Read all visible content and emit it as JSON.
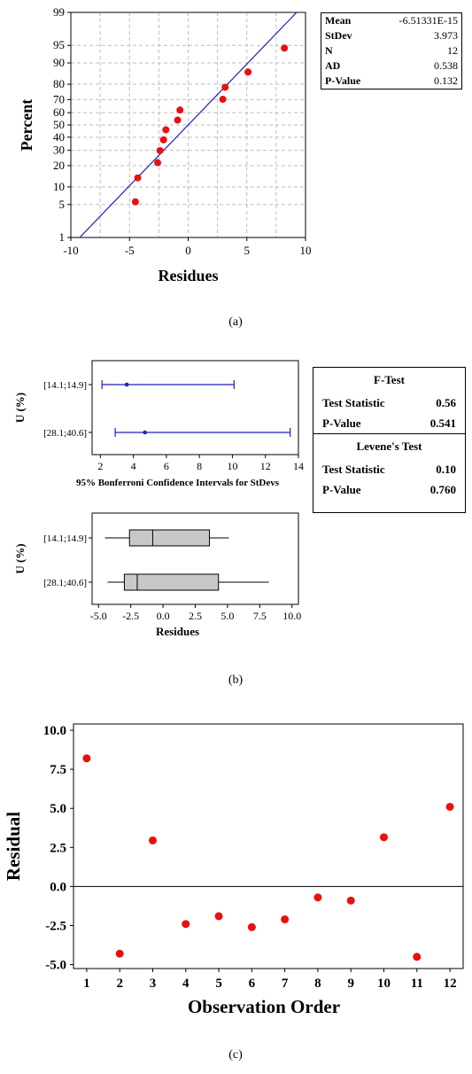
{
  "colors": {
    "point": "#e81010",
    "fitline": "#1f1fbf",
    "grid": "#bdbdbd",
    "box": "#c8c8c8"
  },
  "panel_a": {
    "caption": "(a)",
    "stats": [
      {
        "label": "Mean",
        "value": "-6.51331E-15"
      },
      {
        "label": "StDev",
        "value": "3.973"
      },
      {
        "label": "N",
        "value": "12"
      },
      {
        "label": "AD",
        "value": "0.538"
      },
      {
        "label": "P-Value",
        "value": "0.132"
      }
    ]
  },
  "panel_b": {
    "caption": "(b)",
    "tests": {
      "f_title": "F-Test",
      "f_rows": [
        {
          "label": "Test Statistic",
          "value": "0.56"
        },
        {
          "label": "P-Value",
          "value": "0.541"
        }
      ],
      "levene_title": "Levene's Test",
      "levene_rows": [
        {
          "label": "Test Statistic",
          "value": "0.10"
        },
        {
          "label": "P-Value",
          "value": "0.760"
        }
      ]
    }
  },
  "panel_c": {
    "caption": "(c)"
  },
  "chart_data": [
    {
      "type": "scatter",
      "title": "",
      "xlabel": "Residues",
      "ylabel": "Percent",
      "xlim": [
        -10,
        10
      ],
      "y_scale": "normal probability",
      "ylim": [
        1,
        99
      ],
      "grid": true,
      "x_ticks": [
        "-10",
        "-5",
        "0",
        "5",
        "10"
      ],
      "y_ticks": [
        {
          "v": 1,
          "label": "1"
        },
        {
          "v": 5,
          "label": "5"
        },
        {
          "v": 10,
          "label": "10"
        },
        {
          "v": 20,
          "label": "20"
        },
        {
          "v": 30,
          "label": "30"
        },
        {
          "v": 40,
          "label": "40"
        },
        {
          "v": 50,
          "label": "50"
        },
        {
          "v": 60,
          "label": "60"
        },
        {
          "v": 70,
          "label": "70"
        },
        {
          "v": 80,
          "label": "80"
        },
        {
          "v": 90,
          "label": "90"
        },
        {
          "v": 95,
          "label": "95"
        },
        {
          "v": 99,
          "label": "99"
        }
      ],
      "points": [
        {
          "x": -4.5,
          "y": 5.6
        },
        {
          "x": -4.3,
          "y": 13.7
        },
        {
          "x": -2.6,
          "y": 21.8
        },
        {
          "x": -2.4,
          "y": 29.8
        },
        {
          "x": -2.1,
          "y": 37.9
        },
        {
          "x": -1.9,
          "y": 46.0
        },
        {
          "x": -0.9,
          "y": 54.0
        },
        {
          "x": -0.7,
          "y": 62.1
        },
        {
          "x": 2.95,
          "y": 70.2
        },
        {
          "x": 3.15,
          "y": 78.2
        },
        {
          "x": 5.1,
          "y": 86.3
        },
        {
          "x": 8.2,
          "y": 94.4
        }
      ],
      "fit_line": {
        "mean": 0.0,
        "stdev": 3.973
      }
    },
    {
      "type": "interval",
      "title": "",
      "xlabel": "95% Bonferroni Confidence Intervals for StDevs",
      "ylabel": "U (%)",
      "xlim": [
        1.5,
        14
      ],
      "x_ticks": [
        "2",
        "4",
        "6",
        "8",
        "10",
        "12",
        "14"
      ],
      "grid": false,
      "categories": [
        "[14.1;14.9]",
        "[28.1;40.6]"
      ],
      "intervals": [
        {
          "low": 2.1,
          "est": 3.6,
          "high": 10.1
        },
        {
          "low": 2.9,
          "est": 4.7,
          "high": 13.5
        }
      ]
    },
    {
      "type": "box",
      "title": "",
      "xlabel": "Residues",
      "ylabel": "U (%)",
      "xlim": [
        -5.5,
        10.5
      ],
      "x_ticks": [
        "-5.0",
        "-2.5",
        "0.0",
        "2.5",
        "5.0",
        "7.5",
        "10.0"
      ],
      "grid": false,
      "categories": [
        "[14.1;14.9]",
        "[28.1;40.6]"
      ],
      "boxes": [
        {
          "min": -4.5,
          "q1": -2.6,
          "median": -0.8,
          "q3": 3.6,
          "max": 5.1
        },
        {
          "min": -4.3,
          "q1": -3.0,
          "median": -2.0,
          "q3": 4.3,
          "max": 8.2
        }
      ]
    },
    {
      "type": "scatter",
      "title": "",
      "xlabel": "Observation Order",
      "ylabel": "Residual",
      "xlim": [
        0.6,
        12.4
      ],
      "ylim": [
        -5.25,
        10.4
      ],
      "x_ticks": [
        "1",
        "2",
        "3",
        "4",
        "5",
        "6",
        "7",
        "8",
        "9",
        "10",
        "11",
        "12"
      ],
      "y_ticks": [
        "10.0",
        "7.5",
        "5.0",
        "2.5",
        "0.0",
        "-2.5",
        "-5.0"
      ],
      "grid": false,
      "reference_line": 0,
      "x": [
        1,
        2,
        3,
        4,
        5,
        6,
        7,
        8,
        9,
        10,
        11,
        12
      ],
      "y": [
        8.2,
        -4.3,
        2.95,
        -2.4,
        -1.9,
        -2.6,
        -2.1,
        -0.7,
        -0.9,
        3.15,
        -4.5,
        5.1
      ]
    }
  ]
}
